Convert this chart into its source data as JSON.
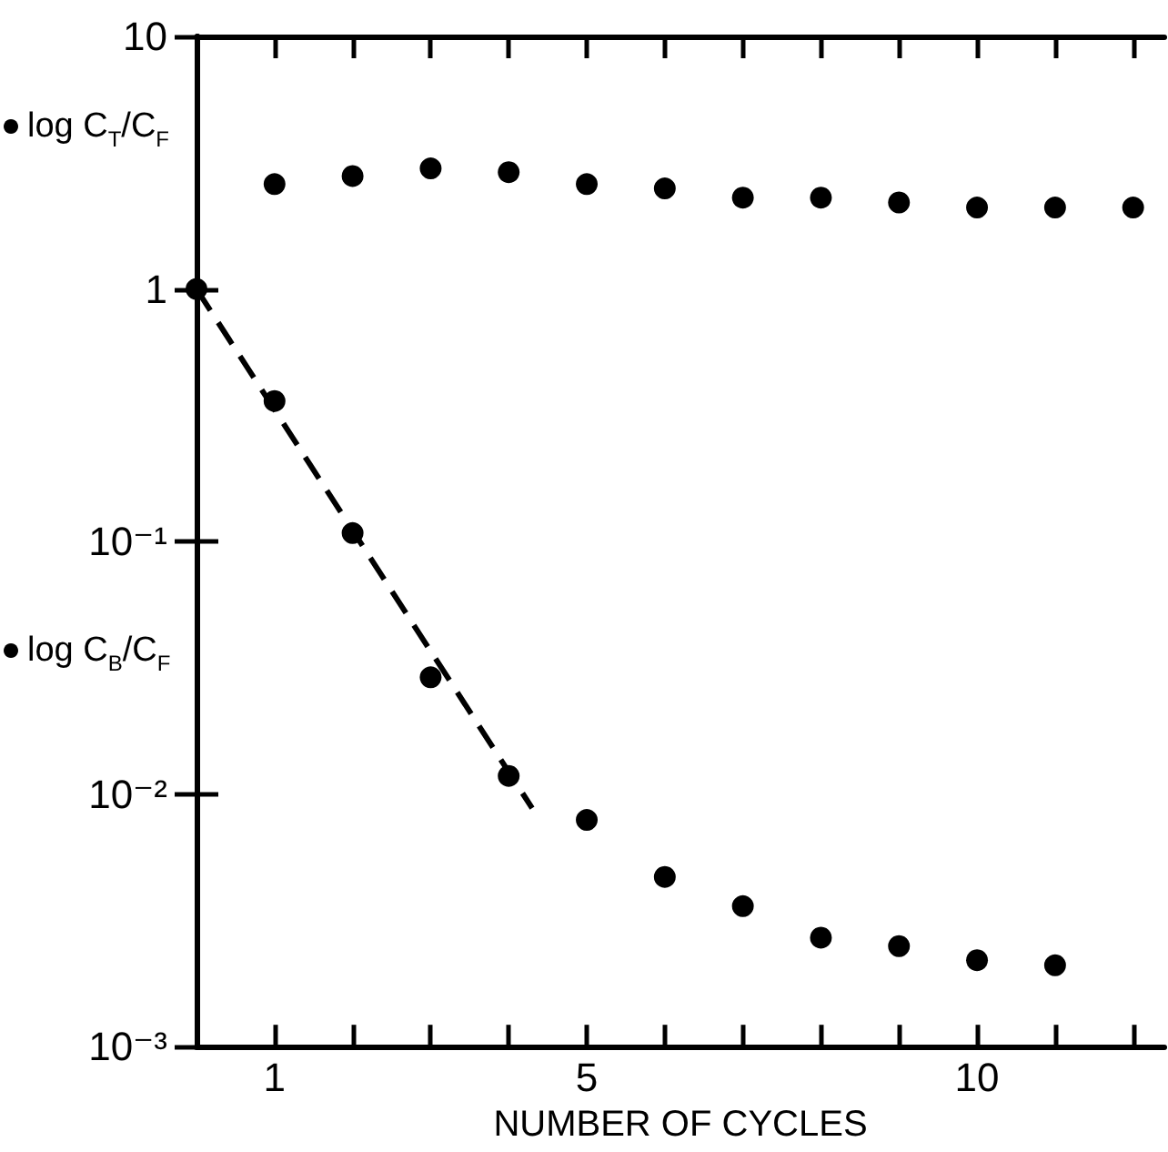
{
  "chart_data": {
    "type": "scatter",
    "xlabel": "NUMBER OF CYCLES",
    "series": [
      {
        "name": "log C$_{T}$/C$_{F}$",
        "color": "#000000",
        "x": [
          1,
          2,
          3,
          4,
          5,
          6,
          7,
          8,
          9,
          10,
          11,
          12
        ],
        "values": [
          2.6,
          2.8,
          3.0,
          2.9,
          2.6,
          2.5,
          2.3,
          2.3,
          2.2,
          2.1,
          2.1,
          2.1
        ]
      },
      {
        "name": "log C$_{B}$/C$_{F}$",
        "color": "#000000",
        "x": [
          0,
          1,
          2,
          3,
          4,
          5,
          6,
          7,
          8,
          9,
          10,
          11
        ],
        "values": [
          1,
          0.36,
          0.108,
          0.029,
          0.0118,
          0.0079,
          0.0047,
          0.0036,
          0.0027,
          0.0025,
          0.0022,
          0.0021
        ]
      },
      {
        "type": "line",
        "color": "#000000",
        "line_style": "dashed",
        "marker": "none",
        "x": [
          0,
          4.3
        ],
        "values": [
          1,
          0.0088
        ]
      }
    ],
    "marker": "circle",
    "log": true,
    "grid": false,
    "legend": "left",
    "xlim": [
      0,
      12.4
    ],
    "xticks": [
      {
        "value": 1,
        "label": "1"
      },
      {
        "value": 2,
        "label": null
      },
      {
        "value": 3,
        "label": null
      },
      {
        "value": 4,
        "label": null
      },
      {
        "value": 5,
        "label": "5"
      },
      {
        "value": 6,
        "label": null
      },
      {
        "value": 7,
        "label": null
      },
      {
        "value": 8,
        "label": null
      },
      {
        "value": 9,
        "label": null
      },
      {
        "value": 10,
        "label": "10"
      },
      {
        "value": 11,
        "label": null
      },
      {
        "value": 12,
        "label": null
      }
    ],
    "ylim": [
      0.001,
      10
    ],
    "yticks": [
      {
        "value": 0.001,
        "label": "10⁻³"
      },
      {
        "value": 0.01,
        "label": "10⁻²"
      },
      {
        "value": 0.1,
        "label": "10⁻¹"
      },
      1,
      10
    ]
  }
}
